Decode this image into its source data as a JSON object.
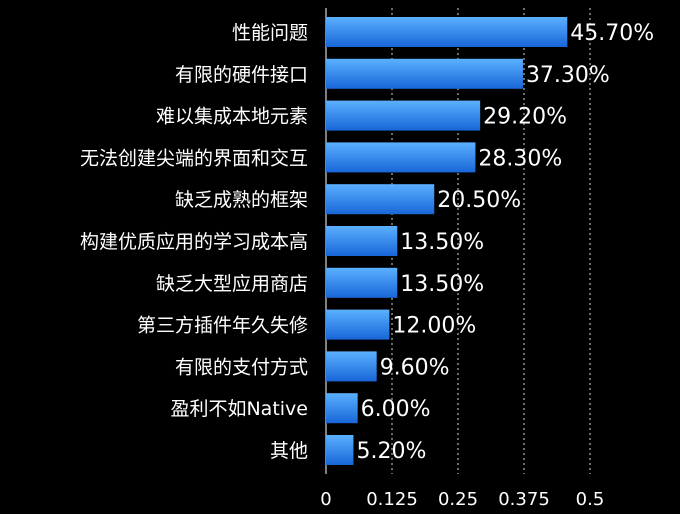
{
  "chart_data": {
    "type": "bar",
    "orientation": "horizontal",
    "categories": [
      "性能问题",
      "有限的硬件接口",
      "难以集成本地元素",
      "无法创建尖端的界面和交互",
      "缺乏成熟的框架",
      "构建优质应用的学习成本高",
      "缺乏大型应用商店",
      "第三方插件年久失修",
      "有限的支付方式",
      "盈利不如Native",
      "其他"
    ],
    "values": [
      0.457,
      0.373,
      0.292,
      0.283,
      0.205,
      0.135,
      0.135,
      0.12,
      0.096,
      0.06,
      0.052
    ],
    "value_labels": [
      "45.70%",
      "37.30%",
      "29.20%",
      "28.30%",
      "20.50%",
      "13.50%",
      "13.50%",
      "12.00%",
      "9.60%",
      "6.00%",
      "5.20%"
    ],
    "xticks": [
      "0",
      "0.125",
      "0.25",
      "0.375",
      "0.5"
    ],
    "xtick_values": [
      0,
      0.125,
      0.25,
      0.375,
      0.5
    ],
    "xlim": [
      0,
      0.5
    ],
    "grid": true,
    "title": "",
    "xlabel": "",
    "ylabel": "",
    "colors": {
      "background": "#000000",
      "bar_top": "#5bb0ff",
      "bar_bottom": "#1866d8",
      "text": "#ffffff"
    }
  }
}
